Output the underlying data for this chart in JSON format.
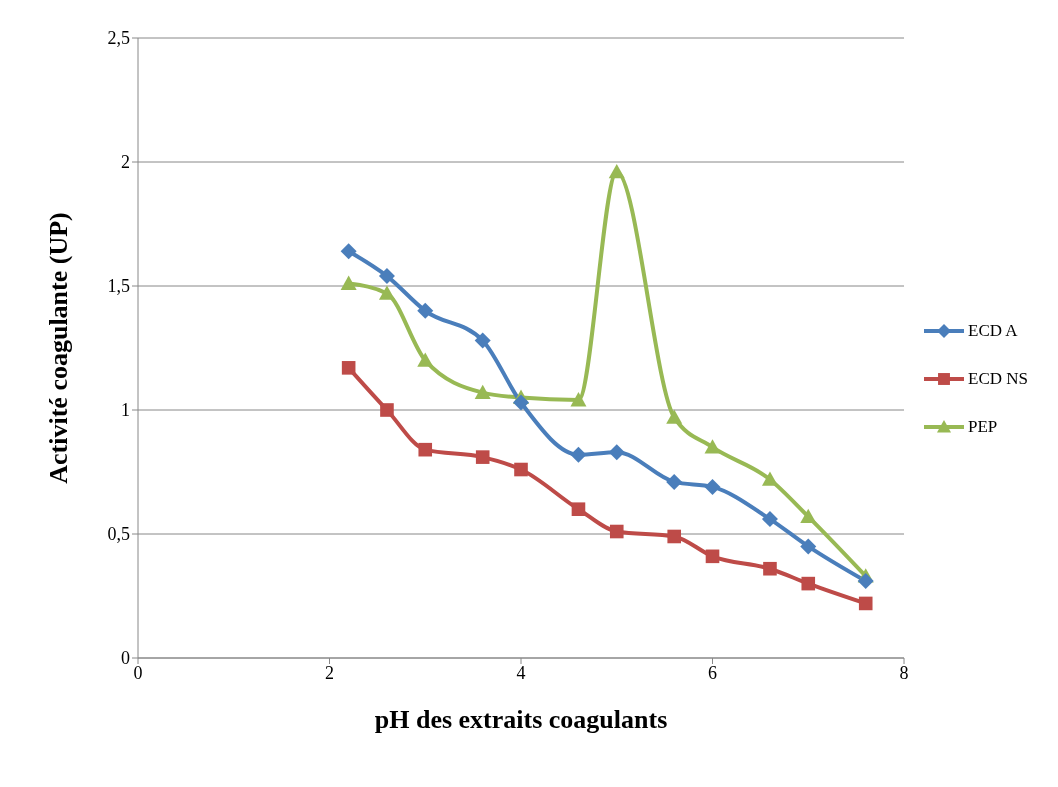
{
  "chart_data": {
    "type": "line",
    "xlabel": "pH des extraits coagulants",
    "ylabel": "Activité coagulante (UP)",
    "x": [
      2.2,
      2.6,
      3,
      3.6,
      4,
      4.6,
      5,
      5.6,
      6,
      6.6,
      7,
      7.6
    ],
    "series": [
      {
        "name": "ECD A",
        "color": "#4a7ebb",
        "marker": "diamond",
        "values": [
          1.64,
          1.54,
          1.4,
          1.28,
          1.03,
          0.82,
          0.83,
          0.71,
          0.69,
          0.56,
          0.45,
          0.31
        ]
      },
      {
        "name": "ECD NS",
        "color": "#be4b48",
        "marker": "square",
        "values": [
          1.17,
          1.0,
          0.84,
          0.81,
          0.76,
          0.6,
          0.51,
          0.49,
          0.41,
          0.36,
          0.3,
          0.22
        ]
      },
      {
        "name": "PEP",
        "color": "#98b954",
        "marker": "triangle",
        "values": [
          1.51,
          1.47,
          1.2,
          1.07,
          1.05,
          1.04,
          1.96,
          0.97,
          0.85,
          0.72,
          0.57,
          0.33
        ]
      }
    ],
    "xlim": [
      0,
      8
    ],
    "xticks": [
      0,
      2,
      4,
      6,
      8
    ],
    "ylim": [
      0,
      2.5
    ],
    "yticks": [
      0,
      {
        "value": 0.5,
        "label": "0,5"
      },
      1,
      {
        "value": 1.5,
        "label": "1,5"
      },
      2,
      {
        "value": 2.5,
        "label": "2,5"
      }
    ],
    "grid": "y",
    "legend": "right",
    "line_style": "solid"
  }
}
